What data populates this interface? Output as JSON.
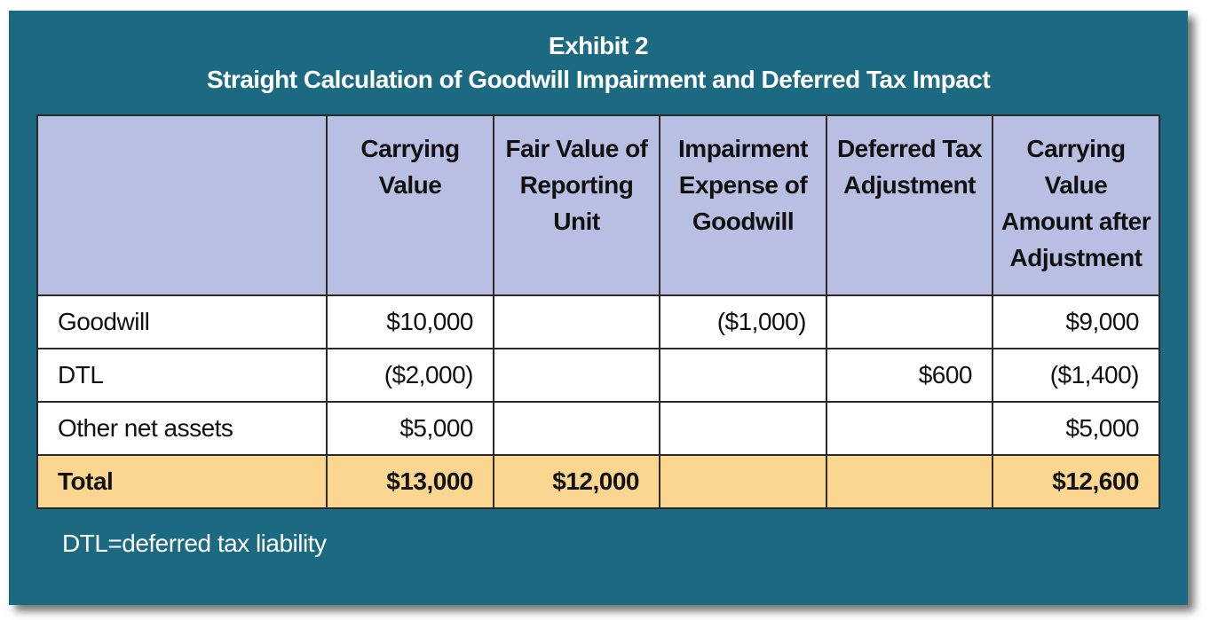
{
  "title_line1": "Exhibit 2",
  "title_line2": "Straight Calculation of Goodwill Impairment and Deferred Tax Impact",
  "headers": [
    "",
    "Carrying Value",
    "Fair Value of Reporting Unit",
    "Impairment Expense of Goodwill",
    "Deferred Tax Adjustment",
    "Carrying Value Amount after Adjustment"
  ],
  "rows": [
    [
      "Goodwill",
      "$10,000",
      "",
      "($1,000)",
      "",
      "$9,000"
    ],
    [
      "DTL",
      "($2,000)",
      "",
      "",
      "$600",
      "($1,400)"
    ],
    [
      "Other net assets",
      "$5,000",
      "",
      "",
      "",
      "$5,000"
    ]
  ],
  "total_row": [
    "Total",
    "$13,000",
    "$12,000",
    "",
    "",
    "$12,600"
  ],
  "footnote": "DTL=deferred tax liability",
  "colors": {
    "frame": "#1b6a82",
    "header_fill": "#b9bee3",
    "total_fill": "#fbd690"
  }
}
